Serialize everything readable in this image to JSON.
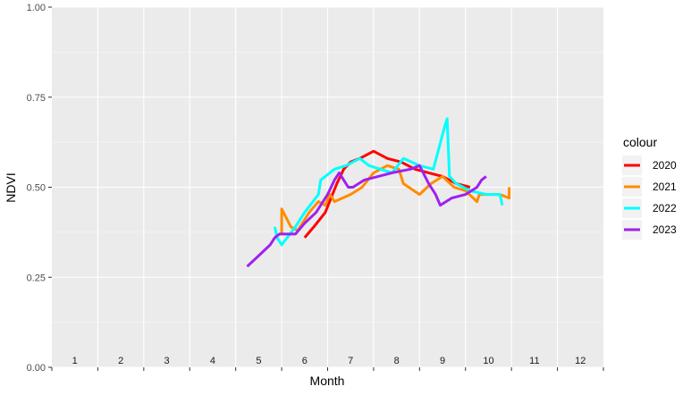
{
  "chart_data": {
    "type": "line",
    "xlabel": "Month",
    "ylabel": "NDVI",
    "ylim": [
      0,
      1
    ],
    "xlim": [
      0.5,
      12.5
    ],
    "y_ticks": [
      {
        "value": 0.0,
        "label": "0.00"
      },
      {
        "value": 0.25,
        "label": "0.25"
      },
      {
        "value": 0.5,
        "label": "0.50"
      },
      {
        "value": 0.75,
        "label": "0.75"
      },
      {
        "value": 1.0,
        "label": "1.00"
      }
    ],
    "x_tick_labels": [
      "1",
      "2",
      "3",
      "4",
      "5",
      "6",
      "7",
      "8",
      "9",
      "10",
      "11",
      "12"
    ],
    "grid": true,
    "legend": {
      "title": "colour",
      "position": "right"
    },
    "series": [
      {
        "name": "2020",
        "color": "#FF0000",
        "points": [
          [
            6.0,
            0.36
          ],
          [
            6.2,
            0.39
          ],
          [
            6.45,
            0.43
          ],
          [
            6.7,
            0.51
          ],
          [
            6.85,
            0.55
          ],
          [
            7.0,
            0.57
          ],
          [
            7.2,
            0.58
          ],
          [
            7.5,
            0.6
          ],
          [
            7.8,
            0.58
          ],
          [
            8.1,
            0.57
          ],
          [
            8.4,
            0.55
          ],
          [
            8.7,
            0.54
          ],
          [
            9.0,
            0.53
          ],
          [
            9.3,
            0.51
          ],
          [
            9.6,
            0.5
          ]
        ]
      },
      {
        "name": "2021",
        "color": "#FF8C00",
        "points": [
          [
            5.5,
            0.37
          ],
          [
            5.5,
            0.44
          ],
          [
            5.7,
            0.39
          ],
          [
            5.85,
            0.38
          ],
          [
            6.1,
            0.43
          ],
          [
            6.3,
            0.46
          ],
          [
            6.45,
            0.45
          ],
          [
            6.55,
            0.48
          ],
          [
            6.65,
            0.46
          ],
          [
            7.0,
            0.48
          ],
          [
            7.25,
            0.5
          ],
          [
            7.5,
            0.54
          ],
          [
            7.8,
            0.56
          ],
          [
            8.05,
            0.55
          ],
          [
            8.15,
            0.51
          ],
          [
            8.5,
            0.48
          ],
          [
            8.75,
            0.51
          ],
          [
            9.0,
            0.53
          ],
          [
            9.25,
            0.5
          ],
          [
            9.5,
            0.49
          ],
          [
            9.75,
            0.46
          ],
          [
            9.8,
            0.48
          ],
          [
            10.25,
            0.48
          ],
          [
            10.45,
            0.47
          ],
          [
            10.45,
            0.5
          ]
        ]
      },
      {
        "name": "2022",
        "color": "#00FFFF",
        "points": [
          [
            5.35,
            0.39
          ],
          [
            5.4,
            0.36
          ],
          [
            5.5,
            0.34
          ],
          [
            5.8,
            0.39
          ],
          [
            6.0,
            0.43
          ],
          [
            6.3,
            0.48
          ],
          [
            6.35,
            0.52
          ],
          [
            6.65,
            0.55
          ],
          [
            6.9,
            0.56
          ],
          [
            7.2,
            0.58
          ],
          [
            7.4,
            0.56
          ],
          [
            7.9,
            0.54
          ],
          [
            8.15,
            0.58
          ],
          [
            8.5,
            0.56
          ],
          [
            8.8,
            0.55
          ],
          [
            9.05,
            0.67
          ],
          [
            9.1,
            0.69
          ],
          [
            9.15,
            0.53
          ],
          [
            9.3,
            0.51
          ],
          [
            9.6,
            0.49
          ],
          [
            9.95,
            0.48
          ],
          [
            10.25,
            0.48
          ],
          [
            10.3,
            0.45
          ]
        ]
      },
      {
        "name": "2023",
        "color": "#A020F0",
        "points": [
          [
            4.75,
            0.28
          ],
          [
            5.0,
            0.31
          ],
          [
            5.25,
            0.34
          ],
          [
            5.35,
            0.36
          ],
          [
            5.45,
            0.37
          ],
          [
            5.6,
            0.37
          ],
          [
            5.8,
            0.37
          ],
          [
            6.0,
            0.4
          ],
          [
            6.25,
            0.43
          ],
          [
            6.5,
            0.48
          ],
          [
            6.65,
            0.52
          ],
          [
            6.75,
            0.54
          ],
          [
            6.95,
            0.5
          ],
          [
            7.05,
            0.5
          ],
          [
            7.3,
            0.52
          ],
          [
            7.6,
            0.53
          ],
          [
            7.9,
            0.54
          ],
          [
            8.3,
            0.55
          ],
          [
            8.5,
            0.56
          ],
          [
            8.7,
            0.51
          ],
          [
            8.85,
            0.48
          ],
          [
            8.95,
            0.45
          ],
          [
            9.2,
            0.47
          ],
          [
            9.5,
            0.48
          ],
          [
            9.75,
            0.5
          ],
          [
            9.85,
            0.52
          ],
          [
            9.95,
            0.53
          ]
        ]
      }
    ]
  }
}
